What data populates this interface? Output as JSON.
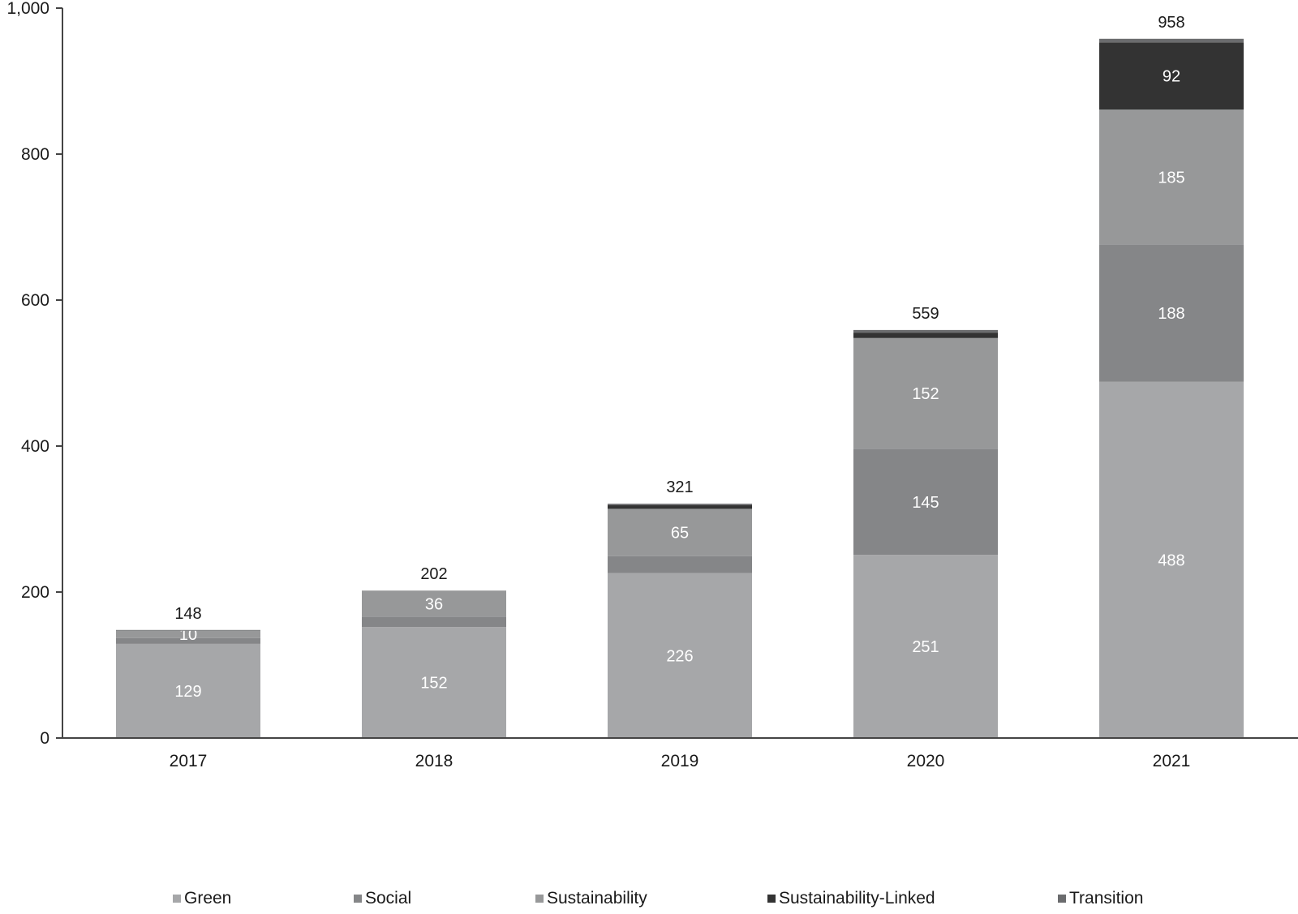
{
  "chart_data": {
    "type": "bar",
    "stacked": true,
    "categories": [
      "2017",
      "2018",
      "2019",
      "2020",
      "2021"
    ],
    "ylim": [
      0,
      1000
    ],
    "yticks": [
      0,
      200,
      400,
      600,
      800,
      1000
    ],
    "ytick_labels": [
      "0",
      "200",
      "400",
      "600",
      "800",
      "1,000"
    ],
    "grid": false,
    "legend_position": "bottom",
    "series": [
      {
        "name": "Green",
        "color": "#a6a7a9",
        "values": [
          129,
          152,
          226,
          251,
          488
        ],
        "labels": [
          "129",
          "152",
          "226",
          "251",
          "488"
        ]
      },
      {
        "name": "Social",
        "color": "#858688",
        "values": [
          8,
          14,
          23,
          145,
          188
        ],
        "labels": [
          "",
          "",
          "",
          "145",
          "188"
        ]
      },
      {
        "name": "Sustainability",
        "color": "#979899",
        "values": [
          10,
          36,
          65,
          152,
          185
        ],
        "labels": [
          "10",
          "36",
          "65",
          "152",
          "185"
        ]
      },
      {
        "name": "Sustainability-Linked",
        "color": "#333333",
        "values": [
          0,
          0,
          5,
          7,
          92
        ],
        "labels": [
          "",
          "",
          "",
          "",
          "92"
        ]
      },
      {
        "name": "Transition",
        "color": "#6b6c6e",
        "values": [
          1,
          0,
          2,
          4,
          5
        ],
        "labels": [
          "",
          "",
          "",
          "",
          ""
        ]
      }
    ],
    "totals": [
      148,
      202,
      321,
      559,
      958
    ]
  }
}
